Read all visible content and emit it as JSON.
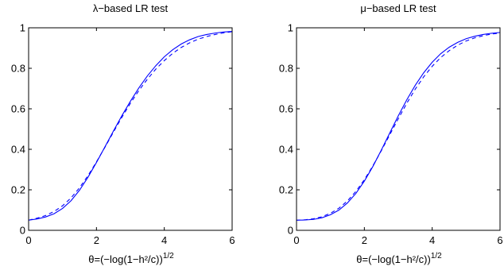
{
  "chart_data": [
    {
      "type": "line",
      "title": "λ−based LR test",
      "xlabel": "θ=(−log(1−h²/c))",
      "xlabel_superscript": "1/2",
      "ylabel": "",
      "xlim": [
        0,
        6
      ],
      "ylim": [
        0,
        1
      ],
      "xticks": [
        0,
        2,
        4,
        6
      ],
      "yticks": [
        0,
        0.2,
        0.4,
        0.6,
        0.8,
        1
      ],
      "ytick_labels": [
        "0",
        "0.2",
        "0.4",
        "0.6",
        "0.8",
        "1"
      ],
      "grid": false,
      "legend": "none",
      "series": [
        {
          "style": "solid",
          "color": "#0000ff",
          "x": [
            0,
            0.25,
            0.5,
            0.75,
            1.0,
            1.25,
            1.5,
            1.75,
            2.0,
            2.25,
            2.5,
            2.75,
            3.0,
            3.25,
            3.5,
            3.75,
            4.0,
            4.25,
            4.5,
            4.75,
            5.0,
            5.25,
            5.5,
            5.75,
            6.0
          ],
          "y": [
            0.05,
            0.056,
            0.066,
            0.082,
            0.108,
            0.146,
            0.198,
            0.262,
            0.335,
            0.412,
            0.49,
            0.566,
            0.637,
            0.703,
            0.762,
            0.813,
            0.857,
            0.892,
            0.92,
            0.941,
            0.957,
            0.967,
            0.974,
            0.979,
            0.982
          ]
        },
        {
          "style": "dashed",
          "color": "#0000ff",
          "x": [
            0,
            0.25,
            0.5,
            0.75,
            1.0,
            1.25,
            1.5,
            1.75,
            2.0,
            2.25,
            2.5,
            2.75,
            3.0,
            3.25,
            3.5,
            3.75,
            4.0,
            4.25,
            4.5,
            4.75,
            5.0,
            5.25,
            5.5,
            5.75,
            6.0
          ],
          "y": [
            0.05,
            0.06,
            0.073,
            0.093,
            0.121,
            0.16,
            0.21,
            0.27,
            0.338,
            0.41,
            0.485,
            0.558,
            0.627,
            0.69,
            0.746,
            0.796,
            0.838,
            0.874,
            0.903,
            0.926,
            0.944,
            0.957,
            0.967,
            0.975,
            0.981
          ]
        }
      ]
    },
    {
      "type": "line",
      "title": "μ−based LR test",
      "xlabel": "θ=(−log(1−h²/c))",
      "xlabel_superscript": "1/2",
      "ylabel": "",
      "xlim": [
        0,
        6
      ],
      "ylim": [
        0,
        1
      ],
      "xticks": [
        0,
        2,
        4,
        6
      ],
      "yticks": [
        0,
        0.2,
        0.4,
        0.6,
        0.8,
        1
      ],
      "ytick_labels": [
        "0",
        "0.2",
        "0.4",
        "0.6",
        "0.8",
        "1"
      ],
      "grid": false,
      "legend": "none",
      "series": [
        {
          "style": "solid",
          "color": "#0000ff",
          "x": [
            0,
            0.25,
            0.5,
            0.75,
            1.0,
            1.25,
            1.5,
            1.75,
            2.0,
            2.25,
            2.5,
            2.75,
            3.0,
            3.25,
            3.5,
            3.75,
            4.0,
            4.25,
            4.5,
            4.75,
            5.0,
            5.25,
            5.5,
            5.75,
            6.0
          ],
          "y": [
            0.05,
            0.051,
            0.054,
            0.062,
            0.077,
            0.1,
            0.135,
            0.182,
            0.243,
            0.315,
            0.396,
            0.481,
            0.565,
            0.644,
            0.716,
            0.778,
            0.83,
            0.872,
            0.904,
            0.928,
            0.946,
            0.958,
            0.967,
            0.973,
            0.977
          ]
        },
        {
          "style": "dashed",
          "color": "#0000ff",
          "x": [
            0,
            0.25,
            0.5,
            0.75,
            1.0,
            1.25,
            1.5,
            1.75,
            2.0,
            2.25,
            2.5,
            2.75,
            3.0,
            3.25,
            3.5,
            3.75,
            4.0,
            4.25,
            4.5,
            4.75,
            5.0,
            5.25,
            5.5,
            5.75,
            6.0
          ],
          "y": [
            0.05,
            0.052,
            0.057,
            0.067,
            0.084,
            0.109,
            0.145,
            0.192,
            0.25,
            0.318,
            0.393,
            0.472,
            0.551,
            0.627,
            0.697,
            0.758,
            0.81,
            0.853,
            0.887,
            0.914,
            0.935,
            0.95,
            0.961,
            0.969,
            0.974
          ]
        }
      ]
    }
  ]
}
